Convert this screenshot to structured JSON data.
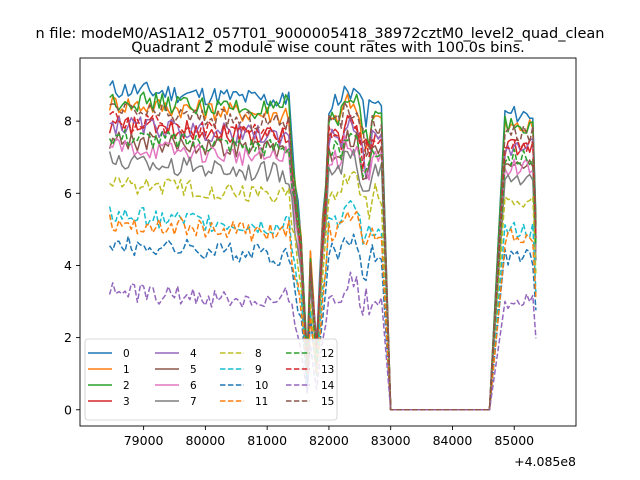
{
  "figure": {
    "suptitle": "n file: modeM0/AS1A12_057T01_9000005418_38972cztM0_level2_quad_clean",
    "axis_offset_label": "+4.085e8"
  },
  "chart_data": {
    "type": "line",
    "title": "Quadrant 2 module wise count rates with 100.0s bins.",
    "xlabel": "",
    "ylabel": "",
    "xlim": [
      77970,
      86000
    ],
    "ylim": [
      -0.45,
      9.75
    ],
    "x_offset": 408500000,
    "x_ticks": [
      79000,
      80000,
      81000,
      82000,
      83000,
      84000,
      85000
    ],
    "x_tick_labels": [
      "79000",
      "80000",
      "81000",
      "82000",
      "83000",
      "84000",
      "85000"
    ],
    "y_ticks": [
      0,
      2,
      4,
      6,
      8
    ],
    "y_tick_labels": [
      "0",
      "2",
      "4",
      "6",
      "8"
    ],
    "grid": false,
    "legend_position": "lower-left",
    "legend_columns": 4,
    "segments": [
      {
        "start": 78450,
        "end": 82850
      },
      {
        "start": 84850,
        "end": 85350
      }
    ],
    "gap": {
      "x_from": 83000,
      "x_to": 84600,
      "value": 0
    },
    "series": [
      {
        "name": "0",
        "color": "#1f77b4",
        "dash": "solid",
        "base": 8.9
      },
      {
        "name": "1",
        "color": "#ff7f0e",
        "dash": "solid",
        "base": 8.5
      },
      {
        "name": "2",
        "color": "#2ca02c",
        "dash": "solid",
        "base": 8.6
      },
      {
        "name": "3",
        "color": "#d62728",
        "dash": "solid",
        "base": 7.9
      },
      {
        "name": "4",
        "color": "#9467bd",
        "dash": "solid",
        "base": 7.9
      },
      {
        "name": "5",
        "color": "#8c564b",
        "dash": "solid",
        "base": 7.5
      },
      {
        "name": "6",
        "color": "#e377c2",
        "dash": "solid",
        "base": 7.3
      },
      {
        "name": "7",
        "color": "#7f7f7f",
        "dash": "solid",
        "base": 6.9
      },
      {
        "name": "8",
        "color": "#bcbd22",
        "dash": "dashed",
        "base": 6.3
      },
      {
        "name": "9",
        "color": "#17becf",
        "dash": "dashed",
        "base": 5.4
      },
      {
        "name": "10",
        "color": "#1f77b4",
        "dash": "dashed",
        "base": 4.6
      },
      {
        "name": "11",
        "color": "#ff7f0e",
        "dash": "dashed",
        "base": 5.2
      },
      {
        "name": "12",
        "color": "#2ca02c",
        "dash": "dashed",
        "base": 7.6
      },
      {
        "name": "13",
        "color": "#d62728",
        "dash": "dashed",
        "base": 8.0
      },
      {
        "name": "14",
        "color": "#9467bd",
        "dash": "dashed",
        "base": 3.3
      },
      {
        "name": "15",
        "color": "#8c564b",
        "dash": "dashed",
        "base": 8.3
      }
    ]
  }
}
